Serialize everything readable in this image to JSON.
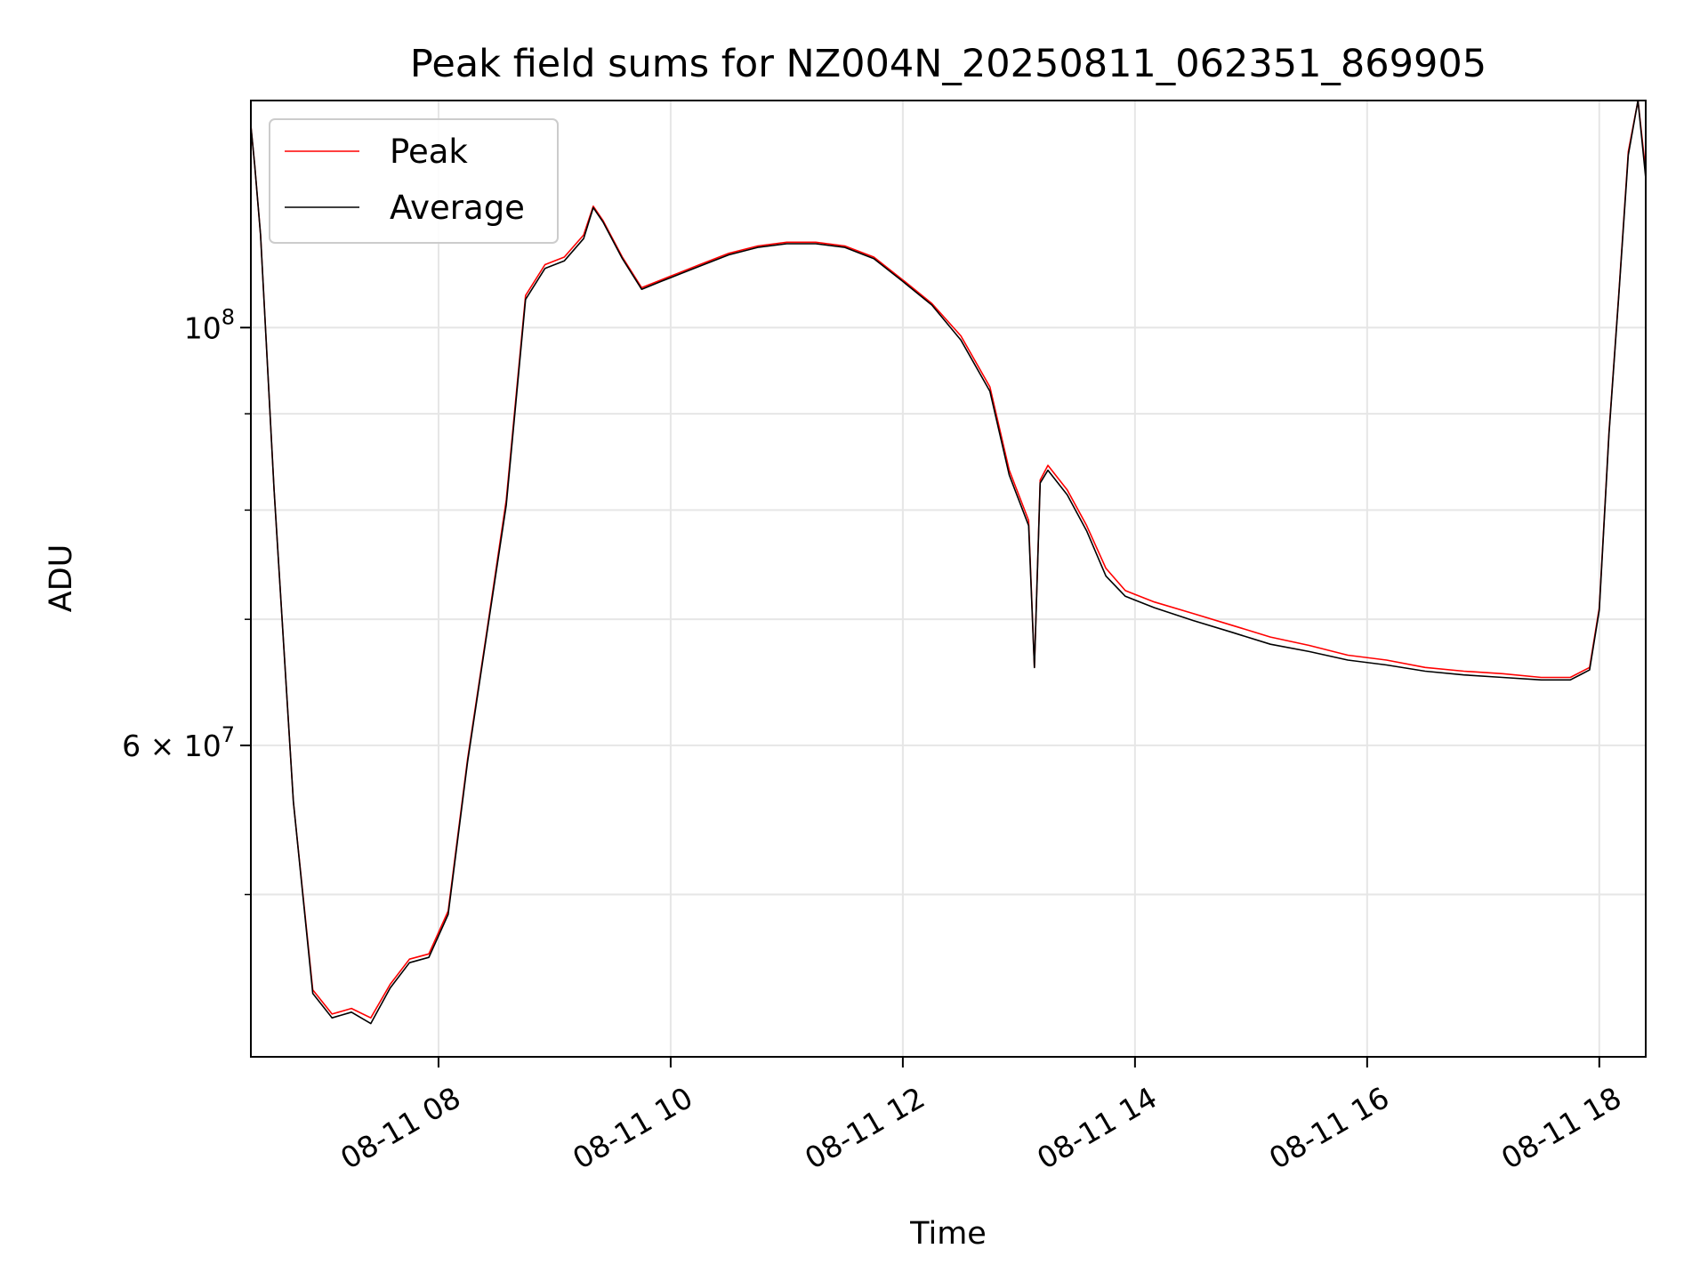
{
  "chart_data": {
    "type": "line",
    "title": "Peak field sums for NZ004N_20250811_062351_869905",
    "xlabel": "Time",
    "ylabel": "ADU",
    "y_scale": "log",
    "xlim": [
      "08-11 06:23",
      "08-11 18:24"
    ],
    "ylim": [
      41000000,
      132000000
    ],
    "x_ticks": [
      {
        "x": "08-11 08:00",
        "label": "08-11 08"
      },
      {
        "x": "08-11 10:00",
        "label": "08-11 10"
      },
      {
        "x": "08-11 12:00",
        "label": "08-11 12"
      },
      {
        "x": "08-11 14:00",
        "label": "08-11 14"
      },
      {
        "x": "08-11 16:00",
        "label": "08-11 16"
      },
      {
        "x": "08-11 18:00",
        "label": "08-11 18"
      }
    ],
    "y_major_ticks": [
      {
        "y": 100000000,
        "base": "10",
        "exp": "8"
      },
      {
        "y": 60000000,
        "base": "6 × 10",
        "exp": "7"
      }
    ],
    "y_minor_ticks": [
      50000000,
      70000000,
      80000000,
      90000000
    ],
    "grid": true,
    "legend": {
      "position": "top-left"
    },
    "series": [
      {
        "name": "Peak",
        "color": "#ff0000",
        "x": [
          "08-11 06:23",
          "08-11 06:25",
          "08-11 06:28",
          "08-11 06:35",
          "08-11 06:45",
          "08-11 06:55",
          "08-11 07:05",
          "08-11 07:15",
          "08-11 07:25",
          "08-11 07:35",
          "08-11 07:45",
          "08-11 07:55",
          "08-11 08:05",
          "08-11 08:15",
          "08-11 08:25",
          "08-11 08:35",
          "08-11 08:45",
          "08-11 08:55",
          "08-11 09:05",
          "08-11 09:15",
          "08-11 09:20",
          "08-11 09:25",
          "08-11 09:35",
          "08-11 09:45",
          "08-11 09:55",
          "08-11 10:00",
          "08-11 10:15",
          "08-11 10:30",
          "08-11 10:45",
          "08-11 11:00",
          "08-11 11:15",
          "08-11 11:30",
          "08-11 11:45",
          "08-11 12:00",
          "08-11 12:15",
          "08-11 12:30",
          "08-11 12:45",
          "08-11 12:55",
          "08-11 13:05",
          "08-11 13:08",
          "08-11 13:11",
          "08-11 13:15",
          "08-11 13:25",
          "08-11 13:35",
          "08-11 13:45",
          "08-11 13:55",
          "08-11 14:10",
          "08-11 14:30",
          "08-11 14:50",
          "08-11 15:10",
          "08-11 15:30",
          "08-11 15:50",
          "08-11 16:10",
          "08-11 16:30",
          "08-11 16:50",
          "08-11 17:10",
          "08-11 17:30",
          "08-11 17:45",
          "08-11 17:55",
          "08-11 18:00",
          "08-11 18:05",
          "08-11 18:10",
          "08-11 18:15",
          "08-11 18:20",
          "08-11 18:24"
        ],
        "y": [
          128000000,
          122000000,
          112000000,
          82000000,
          56000000,
          44500000,
          43200000,
          43500000,
          43000000,
          44800000,
          46200000,
          46500000,
          49000000,
          59000000,
          69000000,
          81000000,
          104000000,
          108000000,
          109000000,
          112000000,
          116000000,
          114000000,
          109000000,
          105000000,
          106000000,
          106500000,
          108000000,
          109500000,
          110500000,
          111000000,
          111000000,
          110500000,
          109000000,
          106000000,
          103000000,
          99000000,
          93000000,
          84000000,
          79000000,
          66000000,
          83000000,
          84500000,
          82000000,
          78500000,
          74500000,
          72500000,
          71500000,
          70500000,
          69500000,
          68500000,
          67800000,
          67000000,
          66600000,
          66000000,
          65700000,
          65500000,
          65200000,
          65200000,
          66000000,
          71000000,
          88000000,
          104000000,
          124000000,
          133000000,
          121000000
        ]
      },
      {
        "name": "Average",
        "color": "#000000",
        "x": [
          "08-11 06:23",
          "08-11 06:25",
          "08-11 06:28",
          "08-11 06:35",
          "08-11 06:45",
          "08-11 06:55",
          "08-11 07:05",
          "08-11 07:15",
          "08-11 07:25",
          "08-11 07:35",
          "08-11 07:45",
          "08-11 07:55",
          "08-11 08:05",
          "08-11 08:15",
          "08-11 08:25",
          "08-11 08:35",
          "08-11 08:45",
          "08-11 08:55",
          "08-11 09:05",
          "08-11 09:15",
          "08-11 09:20",
          "08-11 09:25",
          "08-11 09:35",
          "08-11 09:45",
          "08-11 09:55",
          "08-11 10:00",
          "08-11 10:15",
          "08-11 10:30",
          "08-11 10:45",
          "08-11 11:00",
          "08-11 11:15",
          "08-11 11:30",
          "08-11 11:45",
          "08-11 12:00",
          "08-11 12:15",
          "08-11 12:30",
          "08-11 12:45",
          "08-11 12:55",
          "08-11 13:05",
          "08-11 13:08",
          "08-11 13:11",
          "08-11 13:15",
          "08-11 13:25",
          "08-11 13:35",
          "08-11 13:45",
          "08-11 13:55",
          "08-11 14:10",
          "08-11 14:30",
          "08-11 14:50",
          "08-11 15:10",
          "08-11 15:30",
          "08-11 15:50",
          "08-11 16:10",
          "08-11 16:30",
          "08-11 16:50",
          "08-11 17:10",
          "08-11 17:30",
          "08-11 17:45",
          "08-11 17:55",
          "08-11 18:00",
          "08-11 18:05",
          "08-11 18:10",
          "08-11 18:15",
          "08-11 18:20",
          "08-11 18:24"
        ],
        "y": [
          128000000,
          122000000,
          112000000,
          82000000,
          56000000,
          44300000,
          43000000,
          43300000,
          42700000,
          44600000,
          46000000,
          46300000,
          48800000,
          58800000,
          68800000,
          80500000,
          103500000,
          107500000,
          108500000,
          111500000,
          115800000,
          113800000,
          108800000,
          104800000,
          105800000,
          106300000,
          107800000,
          109300000,
          110300000,
          110800000,
          110800000,
          110300000,
          108800000,
          105800000,
          102800000,
          98500000,
          92500000,
          83500000,
          78500000,
          66000000,
          82700000,
          84000000,
          81500000,
          78000000,
          73800000,
          72000000,
          71000000,
          69900000,
          68900000,
          67900000,
          67300000,
          66600000,
          66200000,
          65700000,
          65400000,
          65200000,
          65000000,
          65000000,
          65800000,
          70800000,
          87800000,
          103800000,
          123500000,
          132500000,
          120000000
        ]
      }
    ]
  }
}
